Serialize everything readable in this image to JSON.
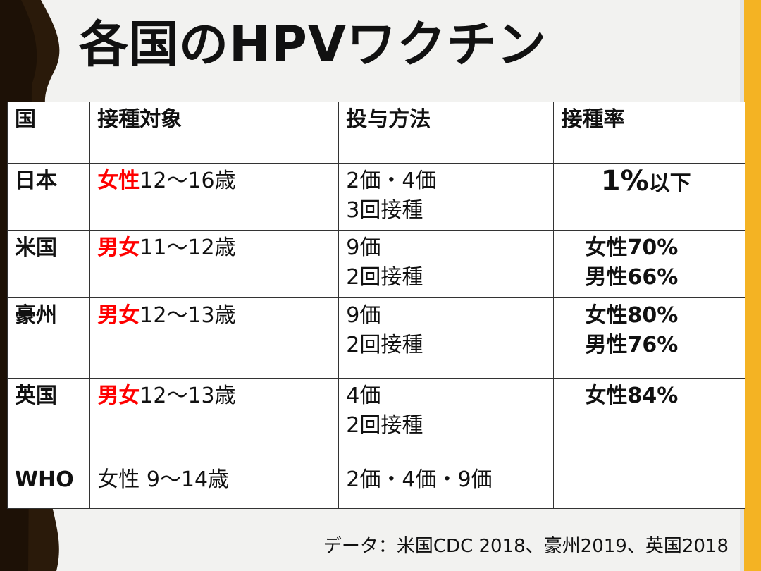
{
  "title": "各国のHPVワクチン",
  "headers": [
    "国",
    "接種対象",
    "投与方法",
    "接種率"
  ],
  "rows": [
    {
      "country": "日本",
      "target_highlight": "女性",
      "target_rest": "12〜16歳",
      "method": [
        "2価・4価",
        "3回接種"
      ],
      "rate": {
        "big": "1%",
        "small": "以下"
      }
    },
    {
      "country": "米国",
      "target_highlight": "男女",
      "target_rest": "11〜12歳",
      "method": [
        "9価",
        "2回接種"
      ],
      "rate": [
        "女性70%",
        "男性66%"
      ]
    },
    {
      "country": "豪州",
      "target_highlight": "男女",
      "target_rest": "12〜13歳",
      "method": [
        "9価",
        "2回接種"
      ],
      "rate": [
        "女性80%",
        "男性76%"
      ]
    },
    {
      "country": "英国",
      "target_highlight": "男女",
      "target_rest": "12〜13歳",
      "method": [
        "4価",
        "2回接種"
      ],
      "rate": [
        "女性84%"
      ]
    },
    {
      "country": "WHO",
      "target": "女性 9〜14歳",
      "method": [
        "2価・4価・9価"
      ],
      "rate": []
    }
  ],
  "source": "データ：米国CDC 2018、豪州2019、英国2018",
  "colors": {
    "highlight": "#ff0000",
    "accent_band": "#f4b323",
    "dark_band": "#2a1a0a"
  }
}
